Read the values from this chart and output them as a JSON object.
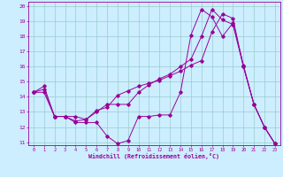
{
  "xlabel": "Windchill (Refroidissement éolien,°C)",
  "xlim": [
    -0.5,
    23.5
  ],
  "ylim": [
    10.8,
    20.3
  ],
  "xticks": [
    0,
    1,
    2,
    3,
    4,
    5,
    6,
    7,
    8,
    9,
    10,
    11,
    12,
    13,
    14,
    15,
    16,
    17,
    18,
    19,
    20,
    21,
    22,
    23
  ],
  "yticks": [
    11,
    12,
    13,
    14,
    15,
    16,
    17,
    18,
    19,
    20
  ],
  "background_color": "#cceeff",
  "grid_color": "#99cccc",
  "line_color": "#990099",
  "lines": [
    {
      "x": [
        0,
        1,
        2,
        3,
        4,
        5,
        6,
        7,
        8,
        9,
        10,
        11,
        12,
        13,
        14,
        15,
        16,
        17,
        18,
        19,
        20,
        21,
        22,
        23
      ],
      "y": [
        14.3,
        14.7,
        12.7,
        12.7,
        12.3,
        12.3,
        12.3,
        11.4,
        10.9,
        11.1,
        12.7,
        12.7,
        12.8,
        12.8,
        14.3,
        18.1,
        19.8,
        19.3,
        18.0,
        18.9,
        16.1,
        13.5,
        12.0,
        10.9
      ]
    },
    {
      "x": [
        0,
        1,
        2,
        3,
        4,
        5,
        6,
        7,
        8,
        9,
        10,
        11,
        12,
        13,
        14,
        15,
        16,
        17,
        18,
        19,
        20,
        21,
        22,
        23
      ],
      "y": [
        14.3,
        14.5,
        12.7,
        12.7,
        12.7,
        12.5,
        13.1,
        13.3,
        14.1,
        14.4,
        14.7,
        14.9,
        15.1,
        15.4,
        15.7,
        16.1,
        16.4,
        18.3,
        19.5,
        19.2,
        16.0,
        13.5,
        12.0,
        10.9
      ]
    },
    {
      "x": [
        0,
        1,
        2,
        3,
        4,
        5,
        6,
        7,
        8,
        9,
        10,
        11,
        12,
        13,
        14,
        15,
        16,
        17,
        18,
        19,
        20,
        21,
        22,
        23
      ],
      "y": [
        14.3,
        14.3,
        12.7,
        12.7,
        12.4,
        12.5,
        13.0,
        13.5,
        13.5,
        13.5,
        14.3,
        14.8,
        15.2,
        15.5,
        16.0,
        16.5,
        18.0,
        19.8,
        19.1,
        18.8,
        16.0,
        13.5,
        12.0,
        10.9
      ]
    }
  ]
}
